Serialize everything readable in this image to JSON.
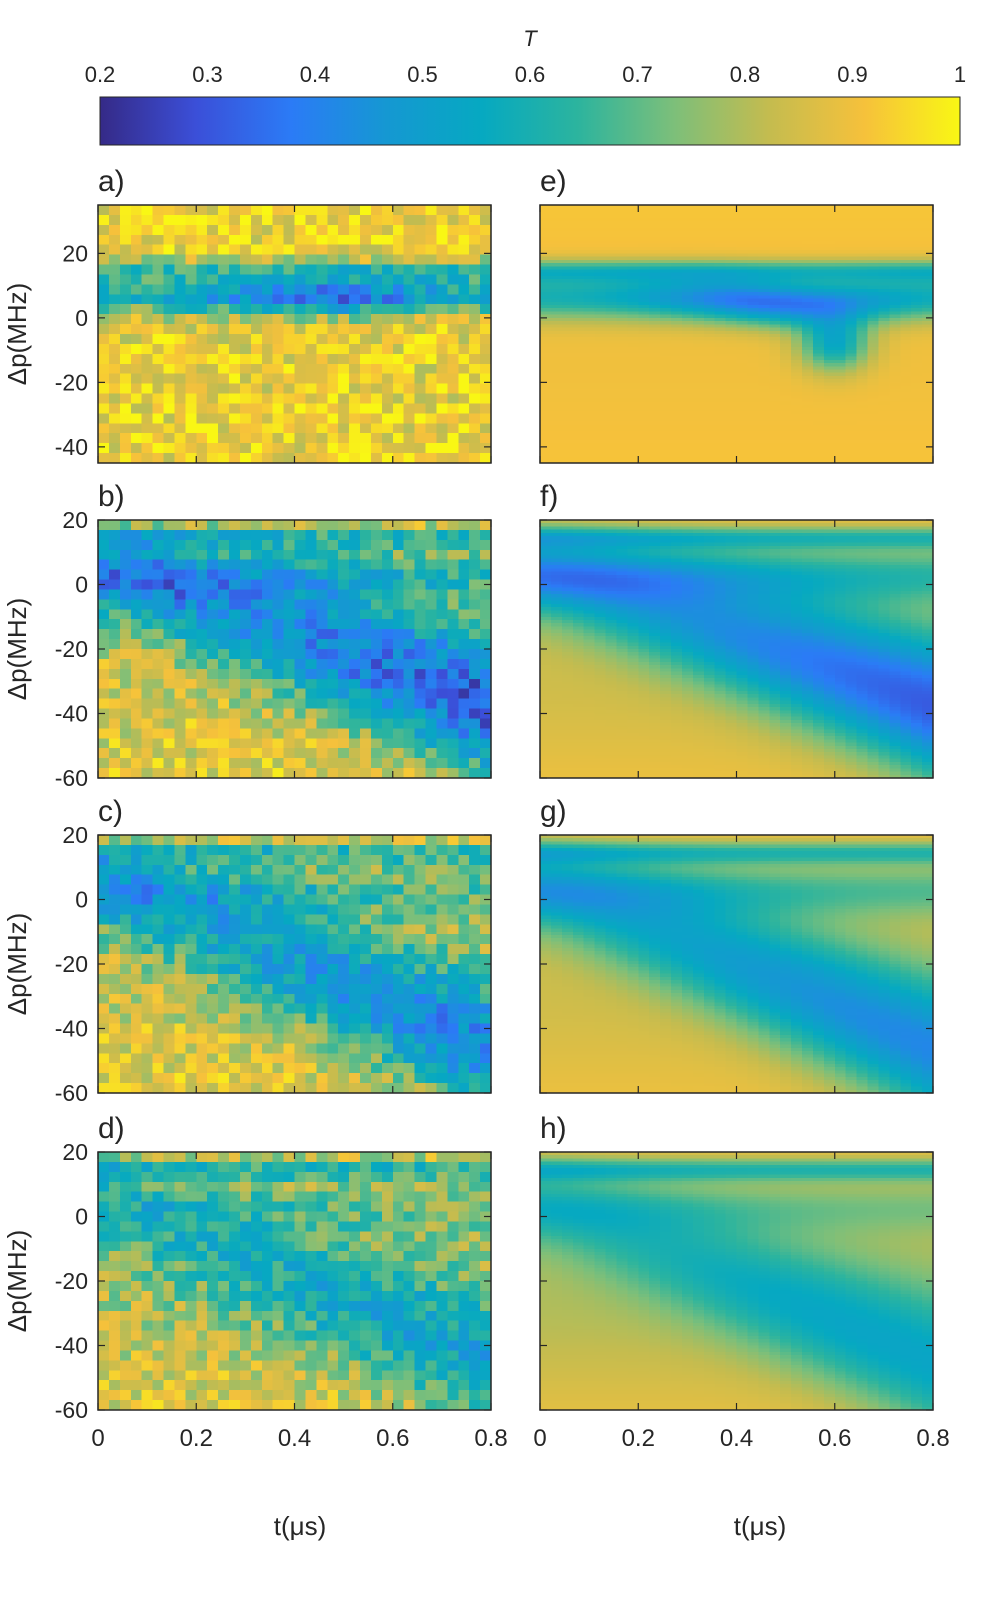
{
  "chart_data": {
    "type": "heatmap",
    "colorbar": {
      "label": "T",
      "min": 0.2,
      "max": 1,
      "ticks": [
        "0.2",
        "0.3",
        "0.4",
        "0.5",
        "0.6",
        "0.7",
        "0.8",
        "0.9",
        "1"
      ],
      "colormap": "parula",
      "colormap_stops": [
        "#352a87",
        "#3b4fd8",
        "#2b7bf6",
        "#1598d2",
        "#06a9c1",
        "#2cb49e",
        "#7cbf7a",
        "#c4bc4f",
        "#f6c13b",
        "#f9f714"
      ]
    },
    "x": {
      "label": "t(μs)",
      "range": [
        0,
        0.8
      ],
      "ticks": [
        "0",
        "0.2",
        "0.4",
        "0.6",
        "0.8"
      ],
      "nbins": 36
    },
    "panels": [
      {
        "label": "a)",
        "kind": "measured",
        "ylabel": "Δp(MHz)",
        "yrange": [
          -45,
          35
        ],
        "yticks": [
          "20",
          "0",
          "-20",
          "-40"
        ],
        "ytick_values": [
          20,
          0,
          -20,
          -40
        ],
        "nrows": 26,
        "bands": [
          {
            "center": 6.5,
            "width": 6,
            "depth": 0.55,
            "t_peak": 0.45,
            "t_spread": 0.6
          },
          {
            "center": 14.5,
            "width": 3,
            "depth": 0.25
          }
        ]
      },
      {
        "label": "b)",
        "kind": "measured",
        "ylabel": "Δp(MHz)",
        "yrange": [
          -60,
          20
        ],
        "yticks": [
          "20",
          "0",
          "-20",
          "-40",
          "-60"
        ],
        "ytick_values": [
          20,
          0,
          -20,
          -40,
          -60
        ],
        "nrows": 26
      },
      {
        "label": "c)",
        "kind": "measured",
        "ylabel": "Δp(MHz)",
        "yrange": [
          -60,
          20
        ],
        "yticks": [
          "20",
          "0",
          "-20",
          "-40",
          "-60"
        ],
        "ytick_values": [
          20,
          0,
          -20,
          -40,
          -60
        ],
        "nrows": 26
      },
      {
        "label": "d)",
        "kind": "measured",
        "ylabel": "Δp(MHz)",
        "yrange": [
          -60,
          20
        ],
        "yticks": [
          "20",
          "0",
          "-20",
          "-40",
          "-60"
        ],
        "ytick_values": [
          20,
          0,
          -20,
          -40,
          -60
        ],
        "nrows": 26
      },
      {
        "label": "e)",
        "kind": "simulated",
        "yrange": [
          -45,
          35
        ],
        "ytick_values": [
          20,
          0,
          -20,
          -40
        ],
        "nrows": 80
      },
      {
        "label": "f)",
        "kind": "simulated",
        "yrange": [
          -60,
          20
        ],
        "ytick_values": [
          20,
          0,
          -20,
          -40,
          -60
        ],
        "nrows": 80
      },
      {
        "label": "g)",
        "kind": "simulated",
        "yrange": [
          -60,
          20
        ],
        "ytick_values": [
          20,
          0,
          -20,
          -40,
          -60
        ],
        "nrows": 80
      },
      {
        "label": "h)",
        "kind": "simulated",
        "yrange": [
          -60,
          20
        ],
        "ytick_values": [
          20,
          0,
          -20,
          -40,
          -60
        ],
        "nrows": 80
      }
    ]
  }
}
